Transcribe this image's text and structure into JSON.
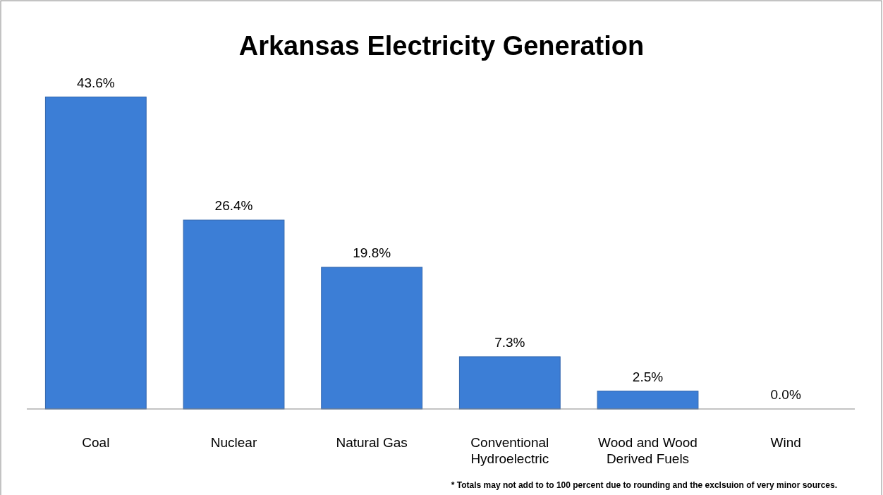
{
  "chart_data": {
    "type": "bar",
    "title": "Arkansas Electricity Generation",
    "categories": [
      "Coal",
      "Nuclear",
      "Natural Gas",
      "Conventional Hydroelectric",
      "Wood and Wood Derived Fuels",
      "Wind"
    ],
    "values": [
      43.6,
      26.4,
      19.8,
      7.3,
      2.5,
      0.0
    ],
    "value_labels": [
      "43.6%",
      "26.4%",
      "19.8%",
      "7.3%",
      "2.5%",
      "0.0%"
    ],
    "color": "#3c7ed6",
    "annotations": [
      "* Totals may not add to to 100 percent due to rounding and the exclsuion of very minor sources."
    ]
  }
}
